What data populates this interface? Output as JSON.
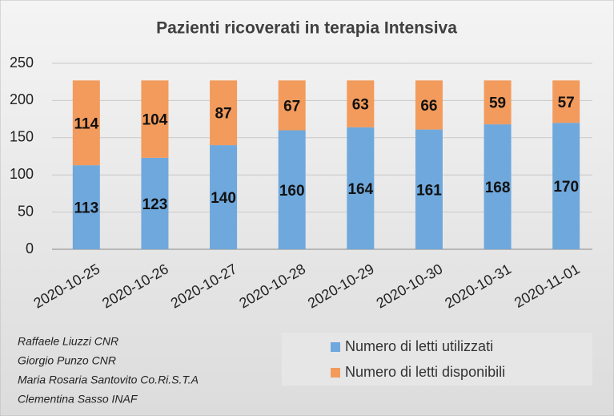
{
  "chart_data": {
    "type": "bar",
    "stacked": true,
    "title": "Pazienti ricoverati in terapia Intensiva",
    "categories": [
      "2020-10-25",
      "2020-10-26",
      "2020-10-27",
      "2020-10-28",
      "2020-10-29",
      "2020-10-30",
      "2020-10-31",
      "2020-11-01"
    ],
    "series": [
      {
        "name": "Numero di letti utilizzati",
        "color": "#6fa8dc",
        "values": [
          113,
          123,
          140,
          160,
          164,
          161,
          168,
          170
        ]
      },
      {
        "name": "Numero di letti disponibili",
        "color": "#f29b5c",
        "values": [
          114,
          104,
          87,
          67,
          63,
          66,
          59,
          57
        ]
      }
    ],
    "ylim": [
      0,
      250
    ],
    "yticks": [
      0,
      50,
      100,
      150,
      200,
      250
    ],
    "grid": true,
    "legend": "bottom-right",
    "annotations": [
      "Raffaele Liuzzi CNR",
      "Giorgio Punzo CNR",
      "Maria Rosaria Santovito Co.Ri.S.T.A",
      "Clementina Sasso INAF"
    ]
  }
}
